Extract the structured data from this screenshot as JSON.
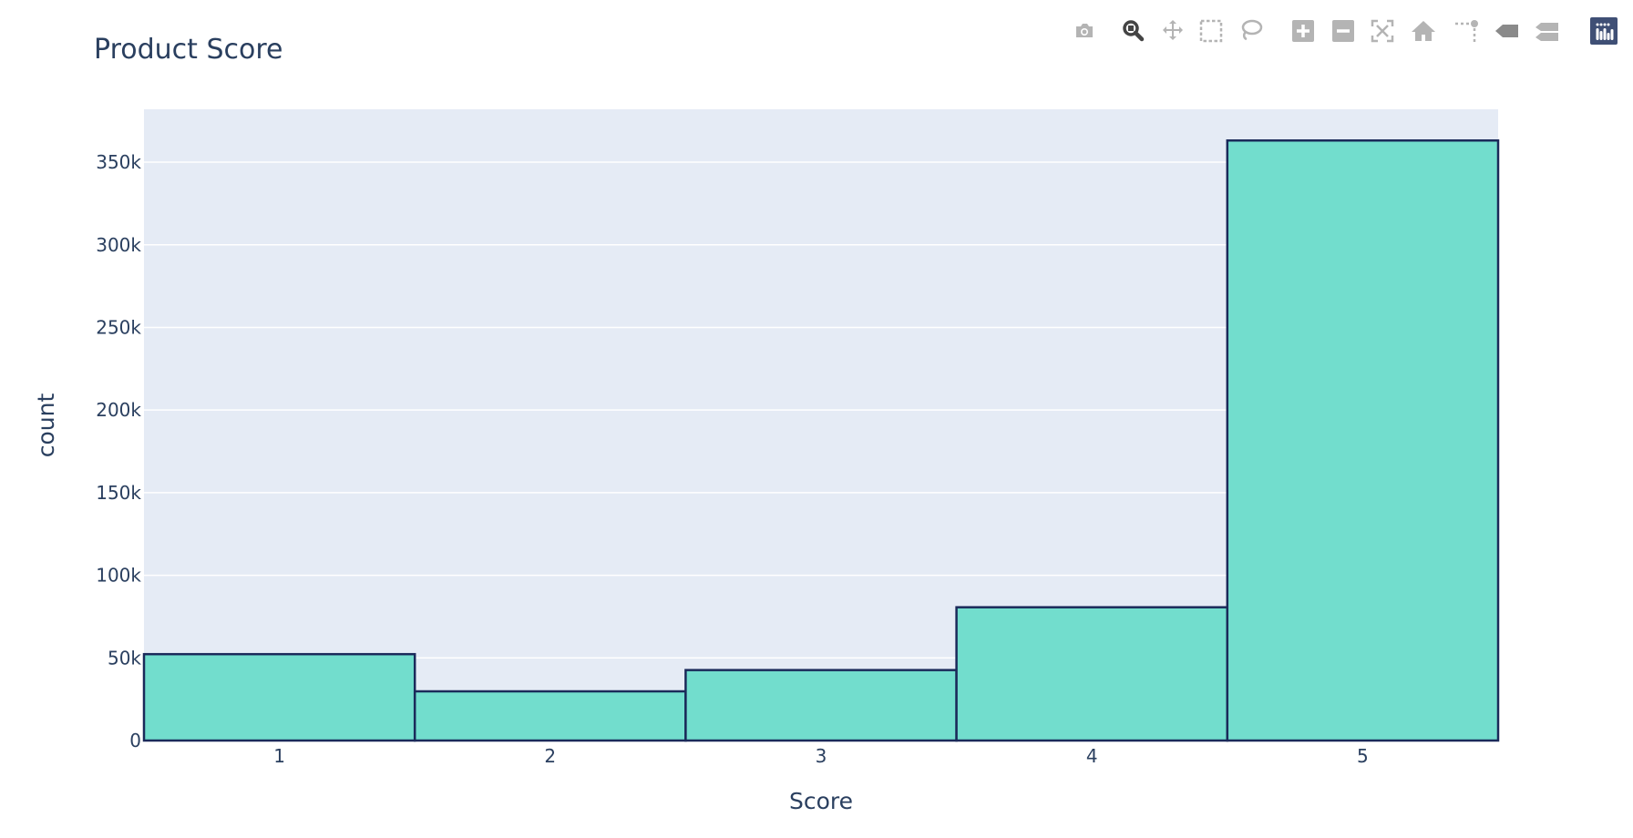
{
  "chart_data": {
    "type": "bar",
    "title": "Product Score",
    "xlabel": "Score",
    "ylabel": "count",
    "categories": [
      "1",
      "2",
      "3",
      "4",
      "5"
    ],
    "values": [
      52268,
      29769,
      42640,
      80655,
      363122
    ],
    "ylim": [
      0,
      382000
    ],
    "yticks": [
      0,
      50000,
      100000,
      150000,
      200000,
      250000,
      300000,
      350000
    ],
    "ytick_labels": [
      "0",
      "50k",
      "100k",
      "150k",
      "200k",
      "250k",
      "300k",
      "350k"
    ],
    "grid": true,
    "legend": "none",
    "colors": {
      "bar_fill": "#72ddcd",
      "bar_outline": "#1b2a5a",
      "plot_bg": "#e5ebf5",
      "gridline": "#ffffff",
      "text": "#2a3f5f"
    }
  },
  "modebar": {
    "icons": [
      "camera-icon",
      "zoom-icon",
      "pan-icon",
      "box-select-icon",
      "lasso-select-icon",
      "zoom-in-icon",
      "zoom-out-icon",
      "autoscale-icon",
      "reset-axes-icon",
      "spike-lines-icon",
      "hover-closest-icon",
      "hover-compare-icon",
      "plotly-logo-icon"
    ],
    "active": "zoom-icon"
  }
}
